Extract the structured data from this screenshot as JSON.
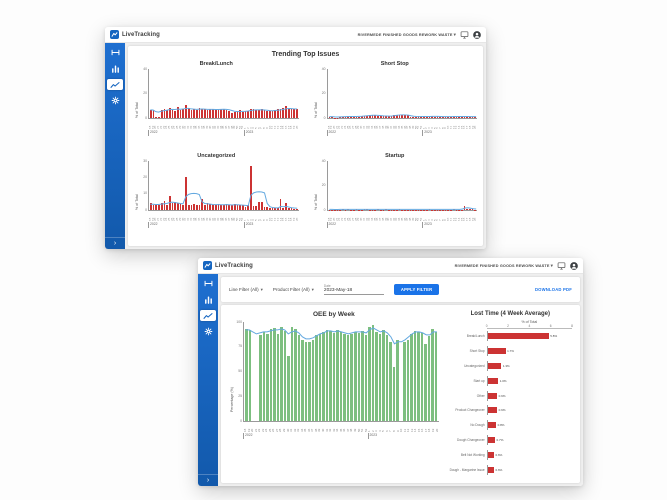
{
  "app": {
    "brand": "LiveTracking",
    "account": "RIVERMEDE FINISHED GOODS REWORK WASTE",
    "caret": "▾",
    "collapse_chevron": "›",
    "colors": {
      "sidebar_blue": "#1565c0",
      "accent_blue": "#1a73e8",
      "bar_red": "#cc3333",
      "bar_green": "#7dbf80",
      "line_blue": "#64a9e0"
    }
  },
  "window_trending": {
    "title": "Trending Top Issues"
  },
  "window_oee": {
    "filters": {
      "line_filter": "Line Filter (All)",
      "product_filter": "Product Filter (All)",
      "date_label": "Date",
      "date_value": "2023-May-18",
      "apply_button": "APPLY FILTER",
      "download_link": "DOWNLOAD PDF"
    }
  },
  "chart_data": [
    {
      "id": "break_lunch",
      "type": "bar",
      "title": "Break/Lunch",
      "ylabel": "% of Total",
      "ylim": [
        0,
        40
      ],
      "yticks": [
        0,
        20,
        40
      ],
      "categories": [
        "18",
        "19",
        "20",
        "21",
        "22",
        "23",
        "24",
        "25",
        "26",
        "27",
        "28",
        "29",
        "30",
        "31",
        "32",
        "33",
        "34",
        "35",
        "36",
        "37",
        "38",
        "39",
        "40",
        "41",
        "42",
        "43",
        "44",
        "45",
        "46",
        "47",
        "48",
        "49",
        "50",
        "51",
        "52",
        "1",
        "2",
        "3",
        "4",
        "5",
        "6",
        "7",
        "8",
        "9",
        "10",
        "11",
        "12",
        "13",
        "14",
        "15",
        "16",
        "17",
        "18",
        "19",
        "20"
      ],
      "year_groups": [
        {
          "label": "2022",
          "span": 35
        },
        {
          "label": "2023",
          "span": 20
        }
      ],
      "bar_color": "#cc3333",
      "line_color": "#64a9e0",
      "series": [
        {
          "name": "% of Total",
          "values": [
            6.5,
            6.8,
            1.2,
            1.0,
            6.2,
            7.0,
            6.4,
            8.2,
            7.1,
            6.0,
            9.0,
            6.6,
            7.2,
            10.5,
            8.0,
            6.2,
            7.0,
            6.5,
            8.0,
            7.4,
            7.0,
            6.6,
            7.2,
            7.0,
            6.4,
            7.0,
            7.6,
            7.2,
            6.6,
            6.0,
            4.2,
            5.0,
            5.6,
            6.2,
            5.2,
            5.6,
            6.0,
            7.0,
            7.4,
            6.2,
            6.6,
            7.0,
            6.2,
            6.0,
            5.6,
            6.0,
            6.6,
            7.0,
            7.2,
            8.0,
            10.0,
            7.2,
            7.6,
            7.0,
            7.2
          ]
        },
        {
          "name": "4 Week Average",
          "values": [
            6.6,
            6.5,
            5.2,
            4.8,
            5.5,
            6.0,
            6.3,
            6.8,
            7.0,
            6.9,
            7.2,
            7.1,
            7.3,
            7.8,
            7.9,
            7.4,
            7.2,
            7.0,
            7.2,
            7.3,
            7.2,
            7.0,
            7.0,
            7.0,
            6.9,
            6.9,
            7.0,
            7.1,
            7.0,
            6.7,
            6.1,
            5.5,
            5.2,
            5.3,
            5.4,
            5.5,
            5.7,
            6.1,
            6.5,
            6.6,
            6.6,
            6.7,
            6.5,
            6.3,
            6.0,
            5.9,
            6.1,
            6.4,
            6.6,
            7.0,
            7.6,
            7.8,
            7.7,
            7.4,
            7.3
          ]
        }
      ]
    },
    {
      "id": "short_stop",
      "type": "bar",
      "title": "Short Stop",
      "ylabel": "% of Total",
      "ylim": [
        0,
        40
      ],
      "yticks": [
        0,
        20,
        40
      ],
      "categories": [
        "18",
        "19",
        "20",
        "21",
        "22",
        "23",
        "24",
        "25",
        "26",
        "27",
        "28",
        "29",
        "30",
        "31",
        "32",
        "33",
        "34",
        "35",
        "36",
        "37",
        "38",
        "39",
        "40",
        "41",
        "42",
        "43",
        "44",
        "45",
        "46",
        "47",
        "48",
        "49",
        "50",
        "51",
        "52",
        "1",
        "2",
        "3",
        "4",
        "5",
        "6",
        "7",
        "8",
        "9",
        "10",
        "11",
        "12",
        "13",
        "14",
        "15",
        "16",
        "17",
        "18",
        "19",
        "20"
      ],
      "year_groups": [
        {
          "label": "2022",
          "span": 35
        },
        {
          "label": "2023",
          "span": 20
        }
      ],
      "bar_color": "#cc3333",
      "line_color": "#64a9e0",
      "series": [
        {
          "name": "% of Total",
          "values": [
            1.0,
            1.1,
            0.3,
            0.3,
            1.0,
            1.2,
            1.1,
            1.3,
            1.2,
            1.0,
            1.4,
            1.2,
            1.3,
            1.8,
            2.0,
            2.2,
            2.4,
            2.2,
            2.0,
            1.8,
            1.6,
            1.4,
            1.5,
            1.6,
            2.4,
            2.6,
            2.8,
            2.6,
            2.4,
            2.2,
            1.2,
            1.0,
            1.1,
            1.3,
            1.2,
            1.1,
            1.2,
            1.3,
            1.4,
            1.2,
            1.3,
            1.2,
            1.1,
            1.0,
            1.1,
            1.2,
            1.3,
            1.2,
            1.1,
            1.2,
            1.3,
            1.2,
            1.1,
            1.2,
            1.1
          ]
        },
        {
          "name": "4 Week Average",
          "values": [
            1.1,
            1.1,
            0.9,
            0.8,
            0.9,
            1.0,
            1.1,
            1.2,
            1.2,
            1.2,
            1.2,
            1.3,
            1.4,
            1.6,
            1.8,
            2.0,
            2.2,
            2.2,
            2.1,
            1.9,
            1.7,
            1.6,
            1.5,
            1.6,
            1.9,
            2.2,
            2.5,
            2.6,
            2.5,
            2.3,
            1.8,
            1.4,
            1.2,
            1.1,
            1.2,
            1.2,
            1.2,
            1.2,
            1.3,
            1.3,
            1.3,
            1.2,
            1.1,
            1.1,
            1.1,
            1.1,
            1.2,
            1.2,
            1.2,
            1.2,
            1.2,
            1.2,
            1.1,
            1.1,
            1.1
          ]
        }
      ]
    },
    {
      "id": "uncategorized",
      "type": "bar",
      "title": "Uncategorized",
      "ylabel": "% of Total",
      "ylim": [
        0,
        30
      ],
      "yticks": [
        0,
        10,
        20,
        30
      ],
      "categories": [
        "18",
        "19",
        "20",
        "21",
        "22",
        "23",
        "24",
        "25",
        "26",
        "27",
        "28",
        "29",
        "30",
        "31",
        "32",
        "33",
        "34",
        "35",
        "36",
        "37",
        "38",
        "39",
        "40",
        "41",
        "42",
        "43",
        "44",
        "45",
        "46",
        "47",
        "48",
        "49",
        "50",
        "51",
        "52",
        "1",
        "2",
        "3",
        "4",
        "5",
        "6",
        "7",
        "8",
        "9",
        "10",
        "11",
        "12",
        "13",
        "14",
        "15",
        "16",
        "17",
        "18",
        "19",
        "20"
      ],
      "year_groups": [
        {
          "label": "2022",
          "span": 35
        },
        {
          "label": "2023",
          "span": 20
        }
      ],
      "bar_color": "#cc3333",
      "line_color": "#64a9e0",
      "series": [
        {
          "name": "% of Total",
          "values": [
            4.0,
            3.0,
            3.2,
            3.0,
            4.5,
            5.5,
            3.2,
            8.5,
            4.0,
            5.0,
            4.2,
            3.4,
            3.0,
            20.0,
            3.2,
            3.0,
            3.4,
            3.2,
            3.0,
            6.5,
            3.2,
            4.0,
            3.4,
            3.0,
            3.2,
            3.4,
            3.0,
            3.2,
            3.6,
            3.2,
            3.0,
            3.4,
            3.2,
            3.0,
            3.2,
            2.0,
            3.0,
            27.0,
            2.4,
            2.2,
            5.0,
            5.2,
            2.0,
            1.6,
            1.4,
            1.2,
            1.0,
            1.2,
            7.0,
            1.4,
            4.0,
            1.2,
            1.0,
            0.8,
            0.8
          ]
        },
        {
          "name": "4 Week Average",
          "values": [
            3.5,
            3.5,
            3.4,
            3.4,
            3.6,
            3.8,
            4.0,
            4.5,
            4.8,
            4.6,
            4.3,
            4.0,
            3.8,
            8.0,
            9.5,
            10.0,
            10.2,
            10.0,
            9.5,
            5.0,
            4.0,
            3.8,
            3.6,
            3.4,
            3.3,
            3.3,
            3.2,
            3.2,
            3.3,
            3.2,
            3.1,
            3.2,
            3.2,
            3.1,
            3.0,
            2.8,
            2.6,
            9.0,
            10.5,
            11.0,
            11.2,
            11.0,
            10.5,
            4.0,
            2.0,
            1.5,
            1.3,
            1.3,
            2.2,
            2.0,
            2.2,
            1.8,
            1.4,
            1.2,
            1.1
          ]
        }
      ]
    },
    {
      "id": "startup",
      "type": "bar",
      "title": "Startup",
      "ylabel": "% of Total",
      "ylim": [
        0,
        40
      ],
      "yticks": [
        0,
        20,
        40
      ],
      "categories": [
        "18",
        "19",
        "20",
        "21",
        "22",
        "23",
        "24",
        "25",
        "26",
        "27",
        "28",
        "29",
        "30",
        "31",
        "32",
        "33",
        "34",
        "35",
        "36",
        "37",
        "38",
        "39",
        "40",
        "41",
        "42",
        "43",
        "44",
        "45",
        "46",
        "47",
        "48",
        "49",
        "50",
        "51",
        "52",
        "1",
        "2",
        "3",
        "4",
        "5",
        "6",
        "7",
        "8",
        "9",
        "10",
        "11",
        "12",
        "13",
        "14",
        "15",
        "16",
        "17",
        "18",
        "19",
        "20"
      ],
      "year_groups": [
        {
          "label": "2022",
          "span": 35
        },
        {
          "label": "2023",
          "span": 20
        }
      ],
      "bar_color": "#cc3333",
      "line_color": "#64a9e0",
      "series": [
        {
          "name": "% of Total",
          "values": [
            0.4,
            0.3,
            0.2,
            0.2,
            0.4,
            0.5,
            0.4,
            0.6,
            0.4,
            0.3,
            0.5,
            0.4,
            0.4,
            0.6,
            0.5,
            0.4,
            0.4,
            0.3,
            0.5,
            0.4,
            0.4,
            0.6,
            0.4,
            0.4,
            0.3,
            0.4,
            0.5,
            0.4,
            0.4,
            0.3,
            0.4,
            0.4,
            0.3,
            0.4,
            0.4,
            0.3,
            0.4,
            0.5,
            0.4,
            0.4,
            0.3,
            0.4,
            0.4,
            0.3,
            0.4,
            0.4,
            0.5,
            0.4,
            0.4,
            0.4,
            3.5,
            1.0,
            0.6,
            0.5,
            0.4
          ]
        },
        {
          "name": "4 Week Average",
          "values": [
            0.5,
            0.5,
            0.4,
            0.4,
            0.5,
            0.5,
            0.5,
            0.5,
            0.5,
            0.5,
            0.5,
            0.5,
            0.5,
            0.5,
            0.5,
            0.5,
            0.5,
            0.5,
            0.5,
            0.5,
            0.5,
            0.5,
            0.5,
            0.5,
            0.5,
            0.5,
            0.5,
            0.5,
            0.5,
            0.5,
            0.5,
            0.5,
            0.5,
            0.5,
            0.5,
            0.5,
            0.5,
            0.5,
            0.5,
            0.5,
            0.5,
            0.5,
            0.5,
            0.5,
            0.5,
            0.5,
            0.5,
            0.5,
            0.5,
            0.8,
            1.6,
            1.8,
            1.4,
            1.0,
            0.8
          ]
        }
      ]
    },
    {
      "id": "oee",
      "type": "bar",
      "title": "OEE by Week",
      "ylabel": "Percentage (%)",
      "ylim": [
        0,
        100
      ],
      "yticks": [
        0,
        25,
        50,
        75,
        100
      ],
      "categories": [
        "18",
        "19",
        "20",
        "21",
        "22",
        "23",
        "24",
        "25",
        "26",
        "27",
        "28",
        "29",
        "30",
        "31",
        "32",
        "33",
        "34",
        "35",
        "36",
        "37",
        "38",
        "39",
        "40",
        "41",
        "42",
        "43",
        "44",
        "45",
        "46",
        "47",
        "48",
        "49",
        "50",
        "51",
        "52",
        "1",
        "2",
        "3",
        "4",
        "5",
        "6",
        "7",
        "8",
        "9",
        "10",
        "11",
        "12",
        "13",
        "14",
        "15",
        "16",
        "17",
        "18",
        "19",
        "20"
      ],
      "year_groups": [
        {
          "label": "2022",
          "span": 35
        },
        {
          "label": "2023",
          "span": 20
        }
      ],
      "bar_color": "#7dbf80",
      "line_color": "#64a9e0",
      "series": [
        {
          "name": "OEE",
          "values": [
            93,
            92,
            0,
            0,
            87,
            90,
            88,
            93,
            94,
            88,
            95,
            91,
            66,
            95,
            93,
            87,
            82,
            80,
            80,
            82,
            87,
            88,
            90,
            92,
            91,
            89,
            92,
            90,
            88,
            87,
            88,
            90,
            89,
            91,
            87,
            95,
            97,
            90,
            88,
            92,
            87,
            80,
            55,
            82,
            0,
            80,
            82,
            88,
            91,
            90,
            89,
            78,
            86,
            93,
            90
          ]
        },
        {
          "name": "4 Week Average",
          "values": [
            92,
            92,
            90,
            88,
            89,
            90,
            90,
            91,
            92,
            92,
            93,
            92,
            88,
            90,
            91,
            89,
            85,
            83,
            83,
            84,
            86,
            88,
            89,
            91,
            91,
            90,
            91,
            90,
            89,
            88,
            89,
            90,
            90,
            90,
            89,
            92,
            94,
            92,
            90,
            91,
            89,
            85,
            78,
            80,
            80,
            82,
            85,
            88,
            90,
            90,
            89,
            87,
            87,
            90,
            90
          ]
        }
      ]
    },
    {
      "id": "lost_time",
      "type": "bar",
      "orientation": "horizontal",
      "title": "Lost Time (4 Week Average)",
      "xlabel": "% of Total",
      "xlim": [
        0,
        8
      ],
      "xticks": [
        0,
        2,
        4,
        6,
        8
      ],
      "categories": [
        "Break/Lunch",
        "Short Stop",
        "Uncategorized",
        "Start up",
        "Other",
        "Product Changeover",
        "No Dough",
        "Dough Changeover",
        "Belt Not Working",
        "Dough - Margarine Issue"
      ],
      "values": [
        5.8,
        1.7,
        1.3,
        1.0,
        0.9,
        0.9,
        0.8,
        0.7,
        0.6,
        0.6
      ],
      "value_labels": [
        "5.8%",
        "1.7%",
        "1.3%",
        "1.0%",
        "0.9%",
        "0.9%",
        "0.8%",
        "0.7%",
        "0.6%",
        "0.6%"
      ],
      "bar_color": "#cc3333"
    }
  ]
}
